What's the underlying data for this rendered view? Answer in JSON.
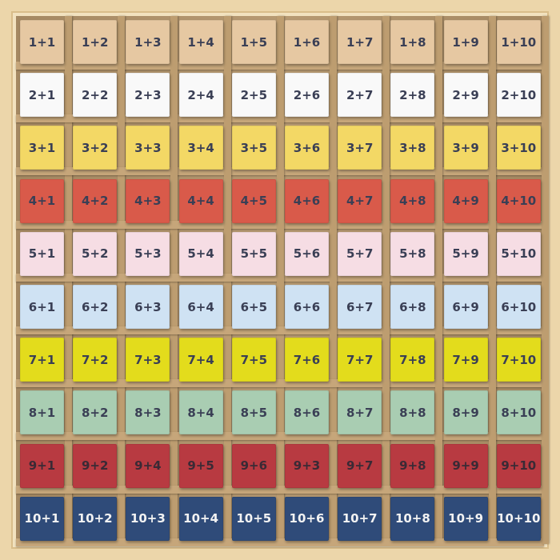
{
  "rows": [
    {
      "color": "#e6c8a2",
      "text_color": "#3a3f55",
      "tiles": [
        "1+1",
        "1+2",
        "1+3",
        "1+4",
        "1+5",
        "1+6",
        "1+7",
        "1+8",
        "1+9",
        "1+10"
      ]
    },
    {
      "color": "#f9f9f9",
      "text_color": "#3a3f55",
      "tiles": [
        "2+1",
        "2+2",
        "2+3",
        "2+4",
        "2+5",
        "2+6",
        "2+7",
        "2+8",
        "2+9",
        "2+10"
      ]
    },
    {
      "color": "#f3d865",
      "text_color": "#3a3f55",
      "tiles": [
        "3+1",
        "3+2",
        "3+3",
        "3+4",
        "3+5",
        "3+6",
        "3+7",
        "3+8",
        "3+9",
        "3+10"
      ]
    },
    {
      "color": "#d95a4a",
      "text_color": "#3a3f55",
      "tiles": [
        "4+1",
        "4+2",
        "4+3",
        "4+4",
        "4+5",
        "4+6",
        "4+7",
        "4+8",
        "4+9",
        "4+10"
      ]
    },
    {
      "color": "#f6dde4",
      "text_color": "#3a3f55",
      "tiles": [
        "5+1",
        "5+2",
        "5+3",
        "5+4",
        "5+5",
        "5+6",
        "5+7",
        "5+8",
        "5+9",
        "5+10"
      ]
    },
    {
      "color": "#cfe2f3",
      "text_color": "#3a3f55",
      "tiles": [
        "6+1",
        "6+2",
        "6+3",
        "6+4",
        "6+5",
        "6+6",
        "6+7",
        "6+8",
        "6+9",
        "6+10"
      ]
    },
    {
      "color": "#e3dc1c",
      "text_color": "#3a3f55",
      "tiles": [
        "7+1",
        "7+2",
        "7+3",
        "7+4",
        "7+5",
        "7+6",
        "7+7",
        "7+8",
        "7+9",
        "7+10"
      ]
    },
    {
      "color": "#a9cdb2",
      "text_color": "#3a3f55",
      "tiles": [
        "8+1",
        "8+2",
        "8+3",
        "8+4",
        "8+5",
        "8+6",
        "8+7",
        "8+8",
        "8+9",
        "8+10"
      ]
    },
    {
      "color": "#b83a41",
      "text_color": "#3a2a35",
      "tiles": [
        "9+1",
        "9+2",
        "9+4",
        "9+5",
        "9+6",
        "9+3",
        "9+7",
        "9+8",
        "9+9",
        "9+10"
      ]
    },
    {
      "color": "#2f4b79",
      "text_color": "#f2f2f2",
      "tiles": [
        "10+1",
        "10+2",
        "10+3",
        "10+4",
        "10+5",
        "10+6",
        "10+7",
        "10+8",
        "10+9",
        "10+10"
      ]
    }
  ]
}
